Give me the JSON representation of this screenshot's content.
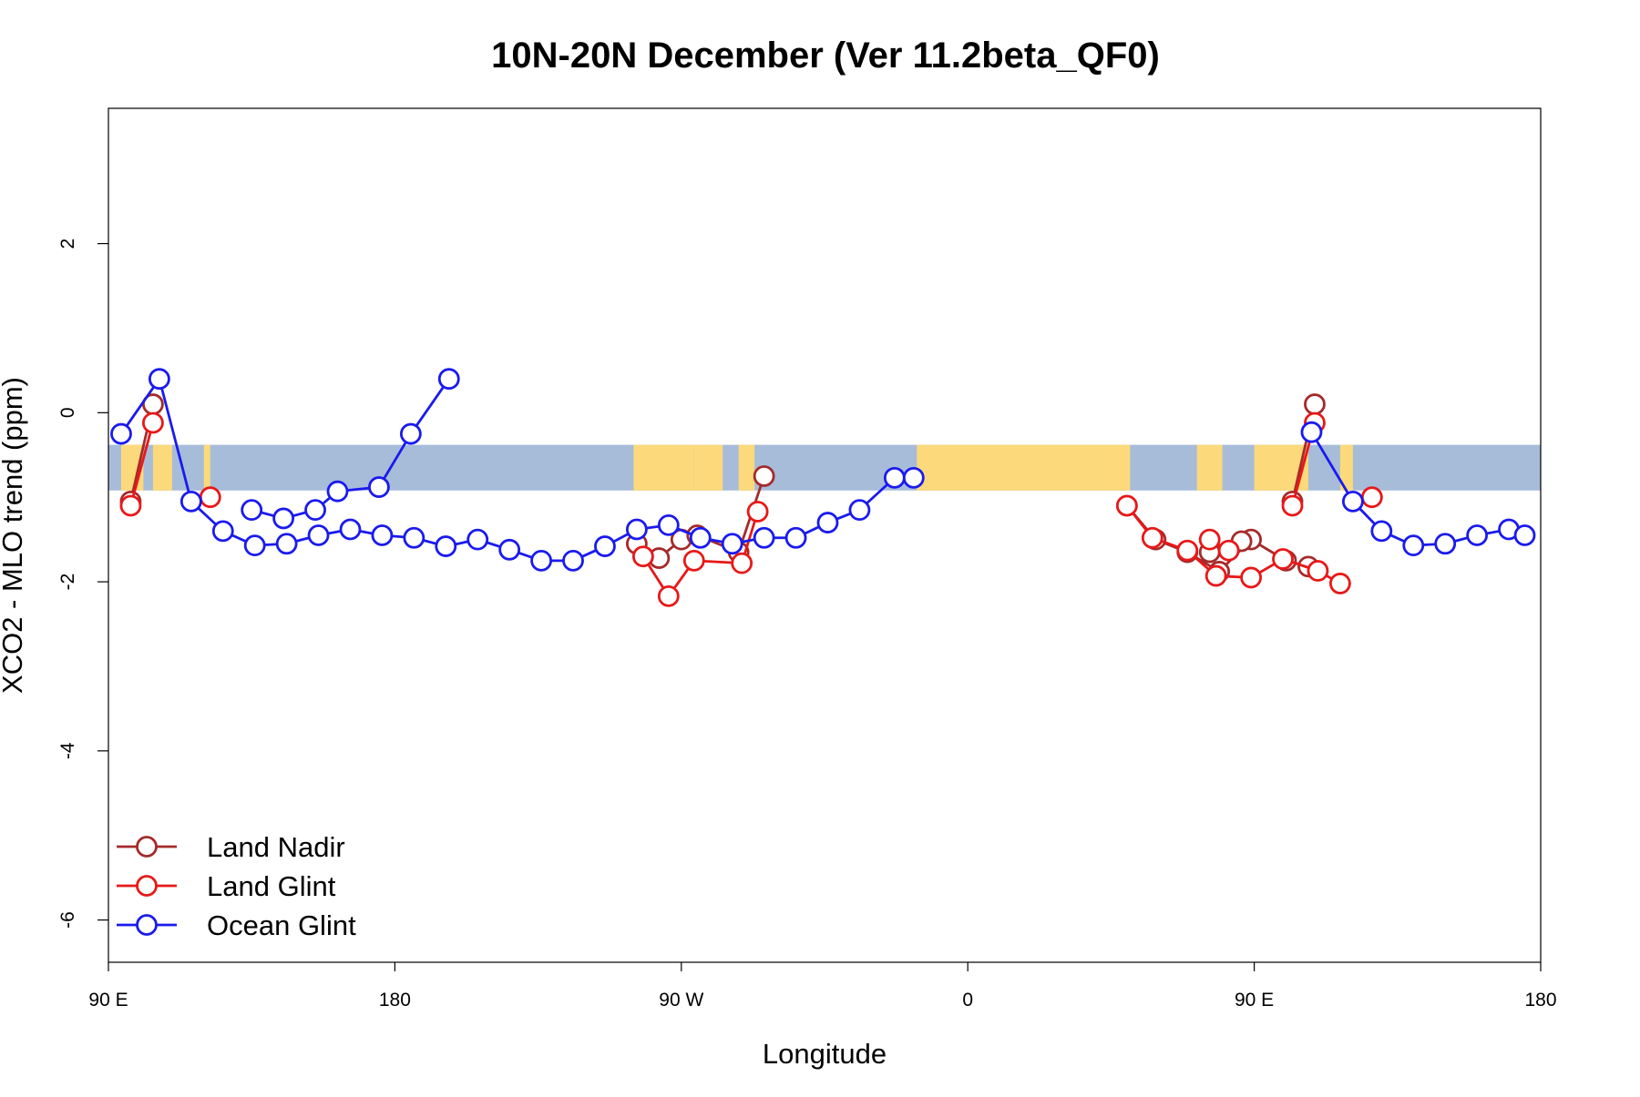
{
  "chart_data": {
    "type": "line",
    "title": "10N-20N December (Ver 11.2beta_QF0)",
    "xlabel": "Longitude",
    "ylabel": "XCO2 - MLO trend (ppm)",
    "xlim": [
      90,
      540
    ],
    "ylim": [
      -6.5,
      3.6
    ],
    "x_ticks": [
      {
        "value": 90,
        "label": "90 E"
      },
      {
        "value": 180,
        "label": "180"
      },
      {
        "value": 270,
        "label": "90 W"
      },
      {
        "value": 360,
        "label": "0"
      },
      {
        "value": 450,
        "label": "90 E"
      },
      {
        "value": 540,
        "label": "180"
      }
    ],
    "y_ticks": [
      {
        "value": 2,
        "label": "2"
      },
      {
        "value": 0,
        "label": "0"
      },
      {
        "value": -2,
        "label": "-2"
      },
      {
        "value": -4,
        "label": "-4"
      },
      {
        "value": -6,
        "label": "-6"
      }
    ],
    "legend_position": "bottom-left",
    "background_band": {
      "description": "latitude-band map strip (10N-20N)",
      "y_range": [
        -0.92,
        -0.38
      ],
      "ocean_color": "#a7bcd9",
      "land_color": "#fcd97a",
      "land_x_ranges": [
        [
          94,
          101
        ],
        [
          104,
          110
        ],
        [
          120,
          122
        ],
        [
          255,
          274
        ],
        [
          274,
          283
        ],
        [
          288,
          293
        ],
        [
          344,
          411
        ],
        [
          432,
          440
        ],
        [
          450,
          467
        ],
        [
          477,
          481
        ]
      ]
    },
    "series": [
      {
        "name": "Land Nadir",
        "color": "#a52a2a",
        "segments": [
          [
            [
              97,
              -1.05
            ],
            [
              104,
              0.1
            ]
          ],
          [
            [
              256,
              -1.55
            ],
            [
              263,
              -1.72
            ],
            [
              270,
              -1.5
            ],
            [
              275,
              -1.45
            ],
            [
              288,
              -1.65
            ],
            [
              296,
              -0.75
            ]
          ],
          [
            [
              410,
              -1.1
            ],
            [
              419,
              -1.5
            ],
            [
              429,
              -1.65
            ],
            [
              439,
              -1.88
            ],
            [
              449,
              -1.5
            ],
            [
              460,
              -1.75
            ],
            [
              467,
              -1.82
            ]
          ],
          [
            [
              436,
              -1.65
            ],
            [
              446,
              -1.52
            ]
          ],
          [
            [
              462,
              -1.05
            ],
            [
              469,
              0.1
            ]
          ]
        ]
      },
      {
        "name": "Land Glint",
        "color": "#e81818",
        "segments": [
          [
            [
              97,
              -1.1
            ],
            [
              104,
              -0.12
            ]
          ],
          [
            [
              122,
              -1.0
            ]
          ],
          [
            [
              258,
              -1.7
            ],
            [
              266,
              -2.17
            ],
            [
              274,
              -1.75
            ],
            [
              289,
              -1.78
            ],
            [
              294,
              -1.17
            ]
          ],
          [
            [
              410,
              -1.1
            ],
            [
              418,
              -1.48
            ],
            [
              429,
              -1.63
            ],
            [
              438,
              -1.93
            ],
            [
              449,
              -1.95
            ],
            [
              459,
              -1.73
            ],
            [
              470,
              -1.87
            ],
            [
              477,
              -2.02
            ]
          ],
          [
            [
              436,
              -1.5
            ],
            [
              442,
              -1.63
            ]
          ],
          [
            [
              462,
              -1.1
            ],
            [
              469,
              -0.12
            ]
          ],
          [
            [
              487,
              -1.0
            ]
          ]
        ]
      },
      {
        "name": "Ocean Glint",
        "color": "#1a1aee",
        "segments": [
          [
            [
              94,
              -0.25
            ],
            [
              106,
              0.4
            ],
            [
              116,
              -1.05
            ],
            [
              126,
              -1.4
            ],
            [
              136,
              -1.57
            ],
            [
              146,
              -1.55
            ],
            [
              156,
              -1.45
            ],
            [
              166,
              -1.38
            ],
            [
              176,
              -1.45
            ],
            [
              186,
              -1.48
            ],
            [
              196,
              -1.58
            ],
            [
              206,
              -1.5
            ],
            [
              216,
              -1.62
            ],
            [
              226,
              -1.75
            ],
            [
              236,
              -1.75
            ],
            [
              246,
              -1.58
            ],
            [
              256,
              -1.38
            ],
            [
              266,
              -1.33
            ],
            [
              276,
              -1.48
            ],
            [
              286,
              -1.55
            ],
            [
              296,
              -1.48
            ],
            [
              306,
              -1.48
            ],
            [
              316,
              -1.3
            ],
            [
              326,
              -1.15
            ],
            [
              337,
              -0.77
            ],
            [
              343,
              -0.77
            ]
          ],
          [
            [
              468,
              -0.23
            ],
            [
              481,
              -1.05
            ],
            [
              490,
              -1.4
            ],
            [
              500,
              -1.57
            ],
            [
              510,
              -1.55
            ],
            [
              520,
              -1.45
            ],
            [
              530,
              -1.38
            ],
            [
              535,
              -1.45
            ]
          ],
          [
            [
              135,
              -1.15
            ],
            [
              145,
              -1.25
            ],
            [
              155,
              -1.15
            ],
            [
              162,
              -0.93
            ],
            [
              175,
              -0.88
            ],
            [
              185,
              -0.25
            ],
            [
              197,
              0.4
            ]
          ]
        ]
      }
    ]
  }
}
